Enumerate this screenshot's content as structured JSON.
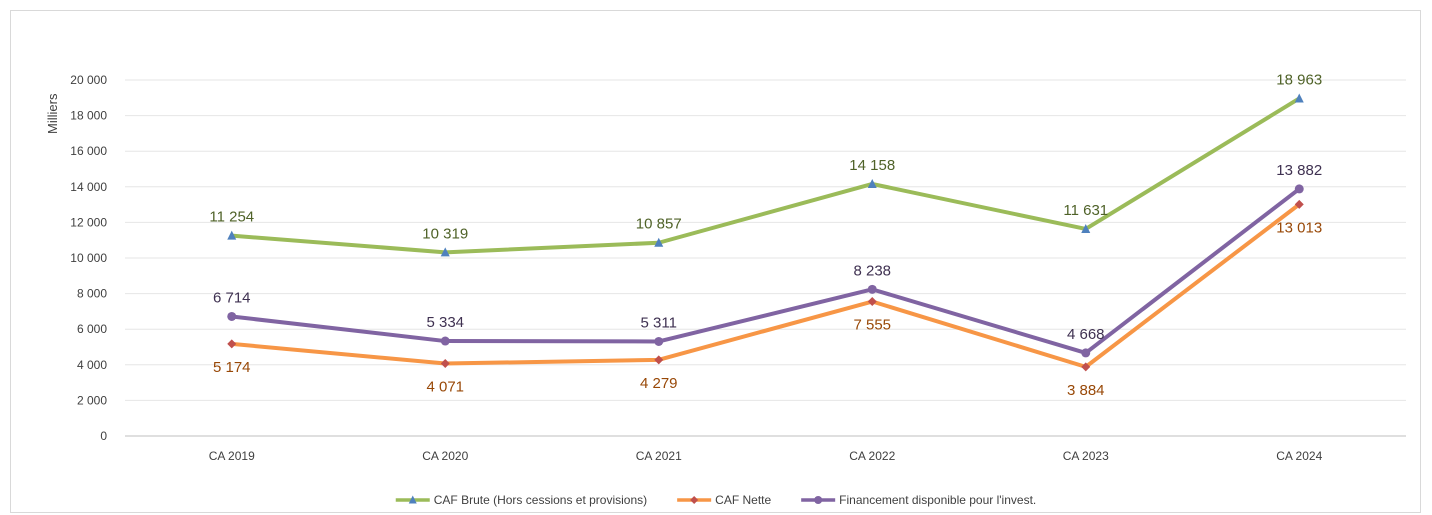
{
  "chart_data": {
    "type": "line",
    "title": "",
    "xlabel": "",
    "ylabel": "Milliers",
    "ylim": [
      0,
      20000
    ],
    "ytick_step": 2000,
    "grid": true,
    "legend_position": "bottom",
    "categories": [
      "CA 2019",
      "CA 2020",
      "CA 2021",
      "CA 2022",
      "CA 2023",
      "CA 2024"
    ],
    "yticks": [
      "0",
      "2 000",
      "4 000",
      "6 000",
      "8 000",
      "10 000",
      "12 000",
      "14 000",
      "16 000",
      "18 000",
      "20 000"
    ],
    "series": [
      {
        "name": "CAF Brute (Hors cessions et provisions)",
        "values": [
          11254,
          10319,
          10857,
          14158,
          11631,
          18963
        ],
        "labels": [
          "11 254",
          "10 319",
          "10 857",
          "14 158",
          "11 631",
          "18 963"
        ],
        "color": "#9BBB59",
        "marker": "triangle",
        "marker_color": "#4F81BD",
        "label_color": "#4F6228",
        "label_pos": "above"
      },
      {
        "name": "CAF Nette",
        "values": [
          5174,
          4071,
          4279,
          7555,
          3884,
          13013
        ],
        "labels": [
          "5 174",
          "4 071",
          "4 279",
          "7 555",
          "3 884",
          "13 013"
        ],
        "color": "#F79646",
        "marker": "diamond",
        "marker_color": "#C0504D",
        "label_color": "#984807",
        "label_pos": "below"
      },
      {
        "name": "Financement disponible pour l'invest.",
        "values": [
          6714,
          5334,
          5311,
          8238,
          4668,
          13882
        ],
        "labels": [
          "6 714",
          "5 334",
          "5 311",
          "8 238",
          "4 668",
          "13 882"
        ],
        "color": "#8064A2",
        "marker": "circle",
        "marker_color": "#8064A2",
        "label_color": "#3F3151",
        "label_pos": "above"
      }
    ]
  }
}
